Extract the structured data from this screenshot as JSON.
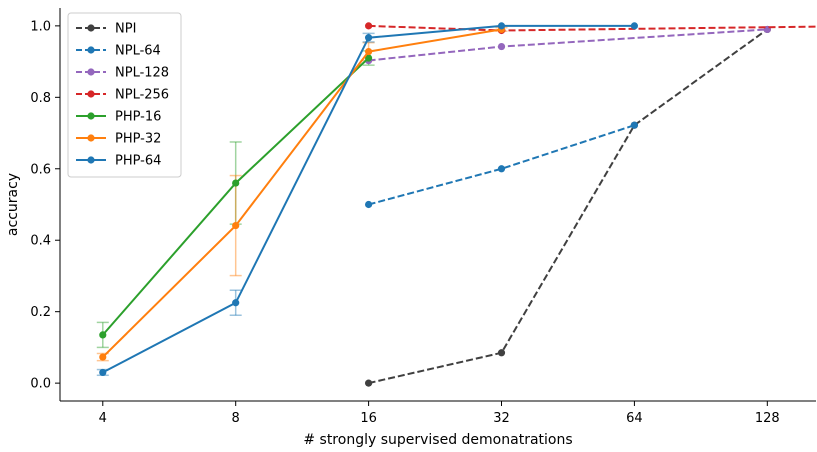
{
  "chart_data": {
    "type": "line",
    "xlabel": "# strongly supervised demonatrations",
    "ylabel": "accuracy",
    "x_scale": "log2",
    "xticks": [
      4,
      8,
      16,
      32,
      64,
      128
    ],
    "xtick_labels": [
      "4",
      "8",
      "16",
      "32",
      "64",
      "128"
    ],
    "yticks": [
      0.0,
      0.2,
      0.4,
      0.6,
      0.8,
      1.0
    ],
    "ytick_labels": [
      "0.0",
      "0.2",
      "0.4",
      "0.6",
      "0.8",
      "1.0"
    ],
    "xlim": [
      3.2,
      165
    ],
    "ylim": [
      -0.05,
      1.05
    ],
    "grid": false,
    "legend_position": "top-left",
    "series": [
      {
        "name": "NPI",
        "style": "dashed",
        "color": "#404040",
        "x": [
          16,
          32,
          64,
          128
        ],
        "y": [
          0.0,
          0.085,
          0.722,
          0.99
        ]
      },
      {
        "name": "NPL-64",
        "style": "dashed",
        "color": "#1f77b4",
        "x": [
          16,
          32,
          64
        ],
        "y": [
          0.5,
          0.6,
          0.722
        ]
      },
      {
        "name": "NPL-128",
        "style": "dashed",
        "color": "#9467bd",
        "x": [
          16,
          32,
          128
        ],
        "y": [
          0.903,
          0.942,
          0.99
        ]
      },
      {
        "name": "NPL-256",
        "style": "dashed",
        "color": "#d62728",
        "x": [
          16,
          32,
          165
        ],
        "y": [
          1.0,
          0.987,
          0.998
        ]
      },
      {
        "name": "PHP-16",
        "style": "solid",
        "color": "#2ca02c",
        "x": [
          4,
          8,
          16
        ],
        "y": [
          0.135,
          0.56,
          0.91
        ],
        "err": [
          0.035,
          0.115,
          0.02
        ]
      },
      {
        "name": "PHP-32",
        "style": "solid",
        "color": "#ff7f0e",
        "x": [
          4,
          8,
          16,
          32
        ],
        "y": [
          0.073,
          0.441,
          0.928,
          0.99
        ],
        "err": [
          0.01,
          0.14,
          0.025,
          0.005
        ]
      },
      {
        "name": "PHP-64",
        "style": "solid",
        "color": "#1f77b4",
        "x": [
          4,
          8,
          16,
          32,
          64
        ],
        "y": [
          0.03,
          0.225,
          0.967,
          1.0,
          1.0
        ],
        "err": [
          0.008,
          0.035,
          0.012,
          0.0,
          0.0
        ]
      }
    ]
  }
}
